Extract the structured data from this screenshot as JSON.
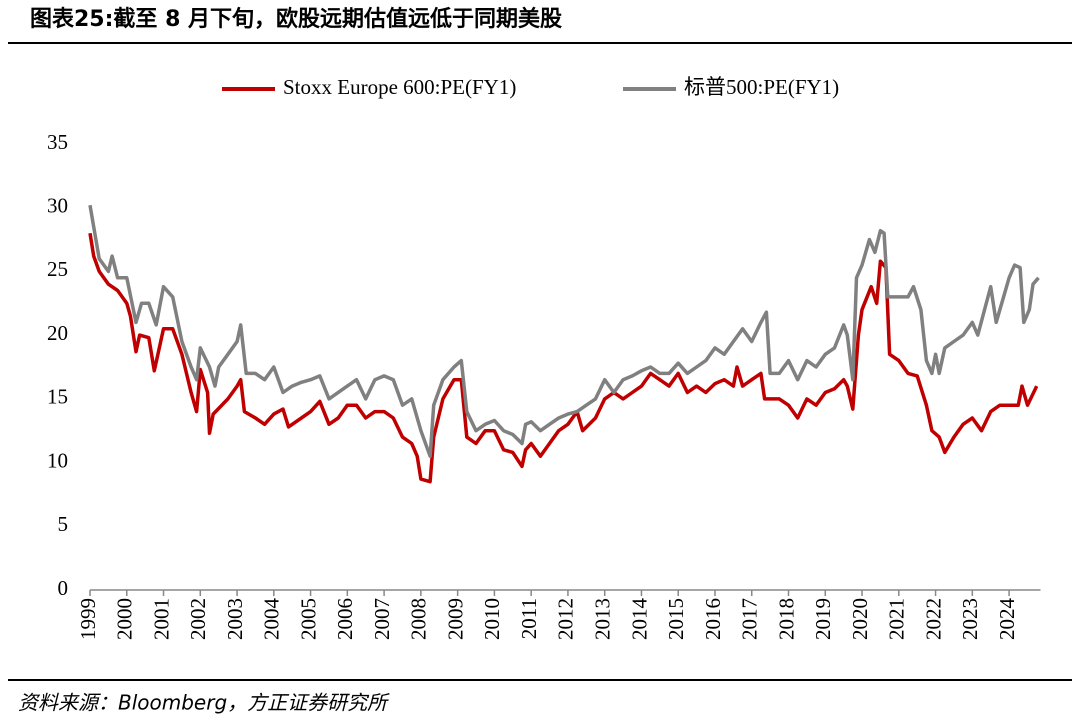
{
  "chart_data": {
    "type": "line",
    "title": "图表25:截至 8 月下旬，欧股远期估值远低于同期美股",
    "source": "资料来源：Bloomberg，方正证券研究所",
    "xlim": [
      1999,
      2024.8
    ],
    "xticks": [
      1999,
      2000,
      2001,
      2002,
      2003,
      2004,
      2005,
      2006,
      2007,
      2008,
      2009,
      2010,
      2011,
      2012,
      2013,
      2014,
      2015,
      2016,
      2017,
      2018,
      2019,
      2020,
      2021,
      2022,
      2023,
      2024
    ],
    "ylim": [
      0,
      35
    ],
    "yticks": [
      0,
      5,
      10,
      15,
      20,
      25,
      30,
      35
    ],
    "grid": false,
    "legend": "top",
    "series": [
      {
        "name": "Stoxx Europe 600:PE(FY1)",
        "color": "#c00000",
        "x": [
          1999,
          1999.1,
          1999.25,
          1999.5,
          1999.75,
          2000,
          2000.1,
          2000.25,
          2000.35,
          2000.6,
          2000.75,
          2001,
          2001.25,
          2001.5,
          2001.75,
          2001.9,
          2002,
          2002.2,
          2002.25,
          2002.35,
          2002.75,
          2003,
          2003.1,
          2003.2,
          2003.5,
          2003.75,
          2004,
          2004.25,
          2004.4,
          2004.75,
          2005,
          2005.25,
          2005.5,
          2005.75,
          2006,
          2006.25,
          2006.5,
          2006.75,
          2007,
          2007.25,
          2007.5,
          2007.75,
          2007.9,
          2008,
          2008.25,
          2008.35,
          2008.6,
          2008.9,
          2009.1,
          2009.25,
          2009.5,
          2009.75,
          2010,
          2010.25,
          2010.5,
          2010.75,
          2010.85,
          2011,
          2011.25,
          2011.5,
          2011.75,
          2012,
          2012.25,
          2012.4,
          2012.75,
          2013,
          2013.25,
          2013.5,
          2013.75,
          2014,
          2014.25,
          2014.5,
          2014.75,
          2015,
          2015.25,
          2015.5,
          2015.75,
          2016,
          2016.25,
          2016.5,
          2016.6,
          2016.75,
          2017,
          2017.25,
          2017.35,
          2017.75,
          2018,
          2018.25,
          2018.5,
          2018.75,
          2019,
          2019.25,
          2019.5,
          2019.6,
          2019.75,
          2019.9,
          2020,
          2020.25,
          2020.4,
          2020.5,
          2020.65,
          2020.75,
          2021,
          2021.25,
          2021.5,
          2021.75,
          2021.9,
          2022.1,
          2022.25,
          2022.5,
          2022.75,
          2023,
          2023.25,
          2023.5,
          2023.75,
          2024,
          2024.25,
          2024.35,
          2024.5,
          2024.75
        ],
        "values": [
          28,
          26.2,
          25,
          24,
          23.5,
          22.5,
          21.5,
          18.7,
          20,
          19.8,
          17.2,
          20.5,
          20.5,
          18.5,
          15.5,
          14,
          17.3,
          15.5,
          12.3,
          13.8,
          15,
          16,
          16.5,
          14,
          13.5,
          13,
          13.8,
          14.2,
          12.8,
          13.5,
          14,
          14.8,
          13,
          13.5,
          14.5,
          14.5,
          13.5,
          14,
          14,
          13.5,
          12,
          11.5,
          10.5,
          8.7,
          8.5,
          12,
          15,
          16.5,
          16.5,
          12,
          11.5,
          12.5,
          12.5,
          11,
          10.8,
          9.7,
          11,
          11.5,
          10.5,
          11.5,
          12.5,
          13,
          14,
          12.5,
          13.5,
          15,
          15.5,
          15,
          15.5,
          16,
          17,
          16.5,
          16,
          17,
          15.5,
          16,
          15.5,
          16.2,
          16.5,
          16,
          17.5,
          16,
          16.5,
          17,
          15,
          15,
          14.5,
          13.5,
          15,
          14.5,
          15.5,
          15.8,
          16.5,
          16,
          14.2,
          20,
          22,
          23.8,
          22.5,
          25.8,
          25.3,
          18.5,
          18,
          17,
          16.8,
          14.5,
          12.5,
          12,
          10.8,
          12,
          13,
          13.5,
          12.5,
          14,
          14.5,
          14.5,
          14.5,
          16,
          14.5,
          16
        ]
      },
      {
        "name": "标普500:PE(FY1)",
        "color": "#808080",
        "x": [
          1999,
          1999.1,
          1999.25,
          1999.5,
          1999.6,
          1999.75,
          2000,
          2000.25,
          2000.4,
          2000.6,
          2000.8,
          2001,
          2001.25,
          2001.5,
          2001.75,
          2001.9,
          2002,
          2002.25,
          2002.4,
          2002.5,
          2002.75,
          2003,
          2003.1,
          2003.25,
          2003.5,
          2003.75,
          2004,
          2004.25,
          2004.5,
          2004.75,
          2005,
          2005.25,
          2005.5,
          2006,
          2006.25,
          2006.5,
          2006.75,
          2007,
          2007.25,
          2007.5,
          2007.75,
          2008,
          2008.25,
          2008.35,
          2008.6,
          2008.9,
          2009.1,
          2009.25,
          2009.5,
          2009.75,
          2010,
          2010.25,
          2010.5,
          2010.75,
          2010.85,
          2011,
          2011.25,
          2011.5,
          2011.75,
          2012,
          2012.25,
          2012.5,
          2012.75,
          2013,
          2013.25,
          2013.5,
          2013.75,
          2014,
          2014.25,
          2014.5,
          2014.75,
          2015,
          2015.25,
          2015.5,
          2015.75,
          2016,
          2016.25,
          2016.5,
          2016.75,
          2017,
          2017.25,
          2017.4,
          2017.5,
          2017.75,
          2018,
          2018.25,
          2018.5,
          2018.75,
          2019,
          2019.25,
          2019.5,
          2019.6,
          2019.75,
          2019.85,
          2020,
          2020.2,
          2020.35,
          2020.5,
          2020.6,
          2020.7,
          2021,
          2021.25,
          2021.4,
          2021.6,
          2021.75,
          2021.9,
          2022,
          2022.1,
          2022.25,
          2022.5,
          2022.75,
          2023,
          2023.15,
          2023.5,
          2023.65,
          2023.85,
          2024,
          2024.15,
          2024.3,
          2024.4,
          2024.55,
          2024.65,
          2024.8
        ],
        "values": [
          30.2,
          28.5,
          26,
          25,
          26.2,
          24.5,
          24.5,
          21,
          22.5,
          22.5,
          20.8,
          23.8,
          23,
          19.5,
          17.5,
          16.5,
          19,
          17.5,
          16,
          17.5,
          18.5,
          19.5,
          20.8,
          17,
          17,
          16.5,
          17.5,
          15.5,
          16,
          16.3,
          16.5,
          16.8,
          15,
          16,
          16.5,
          15,
          16.5,
          16.8,
          16.5,
          14.5,
          15,
          12.5,
          10.5,
          14.5,
          16.5,
          17.5,
          18,
          14,
          12.5,
          13,
          13.3,
          12.5,
          12.2,
          11.5,
          13,
          13.2,
          12.5,
          13,
          13.5,
          13.8,
          14,
          14.5,
          15,
          16.5,
          15.5,
          16.5,
          16.8,
          17.2,
          17.5,
          17,
          17,
          17.8,
          17,
          17.5,
          18,
          19,
          18.5,
          19.5,
          20.5,
          19.5,
          21,
          21.8,
          17,
          17,
          18,
          16.5,
          18,
          17.5,
          18.5,
          19,
          20.8,
          20,
          16.5,
          24.5,
          25.5,
          27.5,
          26.5,
          28.2,
          28,
          23,
          23,
          23,
          23.8,
          22,
          18,
          17,
          18.5,
          17,
          19,
          19.5,
          20,
          21,
          20,
          23.8,
          21,
          23,
          24.5,
          25.5,
          25.3,
          21,
          22,
          24,
          24.5
        ]
      }
    ]
  }
}
